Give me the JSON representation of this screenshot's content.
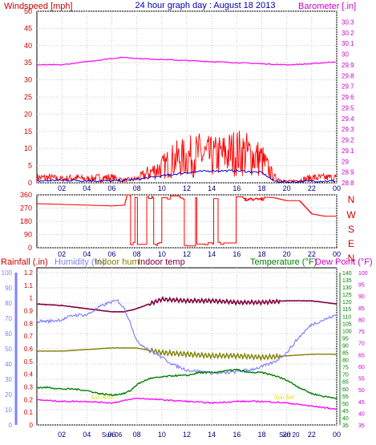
{
  "chart_data": [
    {
      "type": "line",
      "title": "24 hour graph day : August 18 2013",
      "ylabel_left": "Windspeed [mph]",
      "ylabel_right": "Barometer [.in]",
      "ylim_left": [
        0,
        50
      ],
      "ylim_right": [
        28.8,
        30.4
      ],
      "yticks_left": [
        "0",
        "5",
        "10",
        "15",
        "20",
        "25",
        "30",
        "35",
        "40",
        "45",
        "50"
      ],
      "yticks_right": [
        "28.8",
        "28.9",
        "29",
        "29.1",
        "29.2",
        "29.3",
        "29.4",
        "29.5",
        "29.6",
        "29.7",
        "29.8",
        "29.9",
        "30",
        "30.1",
        "30.2",
        "30.3"
      ],
      "xticks": [
        "02",
        "04",
        "06",
        "08",
        "10",
        "12",
        "14",
        "16",
        "18",
        "20",
        "22",
        "00"
      ],
      "grid": true,
      "series": [
        {
          "name": "Windspeed",
          "color": "#ff0000",
          "x": [
            0,
            1,
            2,
            3,
            4,
            5,
            6,
            7,
            8,
            9,
            10,
            11,
            12,
            13,
            14,
            15,
            16,
            17,
            18,
            19,
            20,
            21,
            22,
            23,
            24
          ],
          "y": [
            2,
            2,
            1.5,
            2,
            1.5,
            2,
            2,
            1,
            1.5,
            4,
            6,
            9,
            10,
            11,
            10,
            11,
            12,
            11,
            9,
            2,
            0.5,
            1,
            2,
            2,
            2
          ]
        },
        {
          "name": "Wind average",
          "color": "#0000cc",
          "x": [
            0,
            2,
            4,
            6,
            8,
            10,
            12,
            14,
            16,
            18,
            19,
            20,
            22,
            24
          ],
          "y": [
            0.5,
            0.8,
            0.6,
            0.5,
            1,
            2,
            3,
            3.5,
            3.5,
            3,
            0.5,
            0.2,
            0.5,
            0.5
          ]
        },
        {
          "name": "Barometer",
          "color": "#ff00ff",
          "x": [
            0,
            2,
            4,
            6,
            7,
            8,
            10,
            12,
            14,
            16,
            18,
            20,
            22,
            24
          ],
          "y": [
            29.9,
            29.9,
            29.93,
            29.96,
            29.97,
            29.96,
            29.95,
            29.94,
            29.93,
            29.92,
            29.91,
            29.9,
            29.91,
            29.93
          ]
        }
      ]
    },
    {
      "type": "line",
      "ylabel_right": [
        "N",
        "W",
        "S",
        "E",
        "N"
      ],
      "ylim_left": [
        0,
        360
      ],
      "yticks_left": [
        "0",
        "90",
        "180",
        "270",
        "360"
      ],
      "xticks": [
        "02",
        "04",
        "06",
        "08",
        "10",
        "12",
        "14",
        "16",
        "18",
        "20",
        "22",
        "00"
      ],
      "series": [
        {
          "name": "Wind direction",
          "color": "#ff0000",
          "x": [
            0,
            2,
            4,
            6,
            7,
            7.2,
            8,
            9,
            10,
            11,
            12,
            13,
            14,
            15,
            16,
            17,
            18,
            19,
            20,
            21,
            22,
            23,
            24
          ],
          "y": [
            300,
            295,
            290,
            285,
            290,
            360,
            200,
            340,
            120,
            300,
            60,
            200,
            330,
            60,
            250,
            340,
            345,
            340,
            320,
            320,
            230,
            215,
            215
          ]
        }
      ]
    },
    {
      "type": "line",
      "legend": [
        "Rainfall (.in)",
        "Humidity (%)",
        "Indoor hum",
        "Indoor temp",
        "Temperature (°F)",
        "Dew Point (°F)"
      ],
      "yticks_rain": [
        "0",
        "0.1",
        "0.2",
        "0.3",
        "0.4",
        "0.5",
        "0.6",
        "0.7",
        "0.8",
        "0.9",
        "1",
        "1.1",
        "1.2"
      ],
      "yticks_hum": [
        "0",
        "10",
        "20",
        "30",
        "40",
        "50",
        "60",
        "70",
        "80",
        "90",
        "100"
      ],
      "yticks_temp": [
        "35",
        "40",
        "45",
        "50",
        "55",
        "60",
        "65",
        "70",
        "75",
        "80",
        "85",
        "90",
        "95",
        "100",
        "105",
        "110",
        "115",
        "120",
        "125",
        "130",
        "135",
        "140"
      ],
      "yticks_dew": [
        "35",
        "40",
        "45",
        "50",
        "55",
        "60",
        "65",
        "70",
        "75",
        "80",
        "85",
        "90",
        "95",
        "100"
      ],
      "ylim_hum": [
        0,
        100
      ],
      "ylim_temp": [
        35,
        140
      ],
      "xticks": [
        "02",
        "04",
        "06",
        "08",
        "10",
        "12",
        "14",
        "16",
        "18",
        "20",
        "22",
        "00"
      ],
      "day_labels": [
        "Sun 06",
        "Sun 20"
      ],
      "sun_labels": [
        "Sun Rise",
        "Sun Set"
      ],
      "series": [
        {
          "name": "Humidity (%)",
          "color": "#8080ff",
          "axis": "hum",
          "x": [
            0,
            1,
            2,
            3,
            4,
            5,
            5.8,
            6.5,
            7,
            7.5,
            8,
            9,
            10,
            11,
            12,
            13,
            14,
            15,
            16,
            17,
            18,
            19,
            20,
            21,
            22,
            23,
            24
          ],
          "y": [
            66,
            66,
            67,
            70,
            70,
            75,
            78,
            79,
            74,
            65,
            53,
            48,
            43,
            38,
            35,
            34,
            33,
            33,
            34,
            35,
            37,
            40,
            46,
            56,
            64,
            67,
            70
          ]
        },
        {
          "name": "Indoor hum",
          "color": "#808000",
          "axis": "hum",
          "x": [
            0,
            2,
            4,
            6,
            8,
            10,
            12,
            14,
            16,
            18,
            20,
            22,
            24
          ],
          "y": [
            47,
            47,
            48,
            49,
            49,
            46,
            45,
            44,
            44,
            43,
            44,
            45,
            45
          ]
        },
        {
          "name": "Indoor temp",
          "color": "#800040",
          "axis": "hum",
          "x": [
            0,
            2,
            4,
            6,
            7,
            8,
            9,
            10,
            12,
            14,
            16,
            18,
            20,
            22,
            24
          ],
          "y": [
            77,
            76,
            74,
            72,
            72,
            74,
            77,
            80,
            79,
            79,
            78,
            78,
            79,
            79,
            77
          ]
        },
        {
          "name": "Temperature (°F)",
          "color": "#008000",
          "axis": "temp",
          "x": [
            0,
            1,
            2,
            3,
            4,
            5,
            6,
            7,
            7.5,
            8,
            9,
            10,
            11,
            12,
            13,
            14,
            15,
            16,
            17,
            18,
            19,
            20,
            21,
            22,
            23,
            24
          ],
          "y": [
            60,
            60,
            59,
            59,
            58,
            56,
            55,
            56,
            58,
            62,
            66,
            67,
            68,
            68,
            70,
            70,
            71,
            72,
            70,
            70,
            68,
            65,
            60,
            56,
            54,
            53
          ]
        },
        {
          "name": "Rainfall (.in)",
          "color": "#ff00ff",
          "axis": "hum",
          "x": [
            0,
            2,
            4,
            6,
            8,
            10,
            12,
            14,
            16,
            18,
            20,
            22,
            24
          ],
          "y": [
            16,
            15,
            15,
            14,
            17,
            16,
            15,
            14,
            15,
            15,
            14,
            12,
            10
          ]
        }
      ]
    }
  ]
}
